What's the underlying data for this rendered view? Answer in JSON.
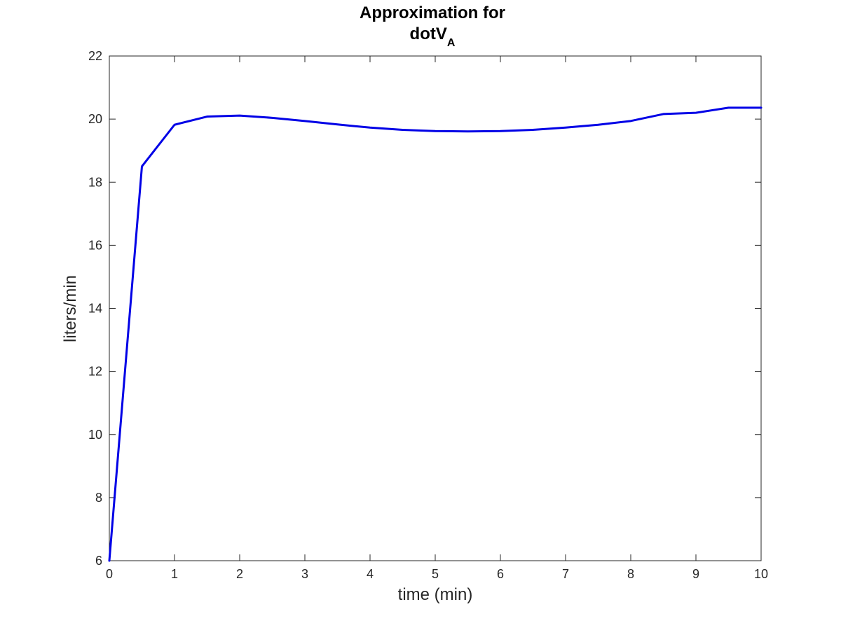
{
  "chart_data": {
    "type": "line",
    "title_line1": "Approximation for",
    "title_line2_main": "dotV",
    "title_line2_sub": "A",
    "xlabel": "time (min)",
    "ylabel": "liters/min",
    "xlim": [
      0,
      10
    ],
    "ylim": [
      6,
      22
    ],
    "xticks": [
      0,
      1,
      2,
      3,
      4,
      5,
      6,
      7,
      8,
      9,
      10
    ],
    "xtick_labels": [
      "0",
      "1",
      "2",
      "3",
      "4",
      "5",
      "6",
      "7",
      "8",
      "9",
      "10"
    ],
    "yticks": [
      6,
      8,
      10,
      12,
      14,
      16,
      18,
      20,
      22
    ],
    "ytick_labels": [
      "6",
      "8",
      "10",
      "12",
      "14",
      "16",
      "18",
      "20",
      "22"
    ],
    "grid": false,
    "line_color": "#0000e6",
    "series": [
      {
        "x": [
          0,
          0.5,
          1,
          1.5,
          2,
          2.5,
          3,
          3.5,
          4,
          4.5,
          5,
          5.5,
          6,
          6.5,
          7,
          7.5,
          8,
          8.5,
          9,
          9.5,
          10
        ],
        "values": [
          6.0,
          18.5,
          19.82,
          20.08,
          20.11,
          20.04,
          19.94,
          19.83,
          19.73,
          19.66,
          19.62,
          19.61,
          19.62,
          19.66,
          19.73,
          19.82,
          19.94,
          20.16,
          20.2,
          20.36,
          20.36
        ]
      }
    ]
  }
}
